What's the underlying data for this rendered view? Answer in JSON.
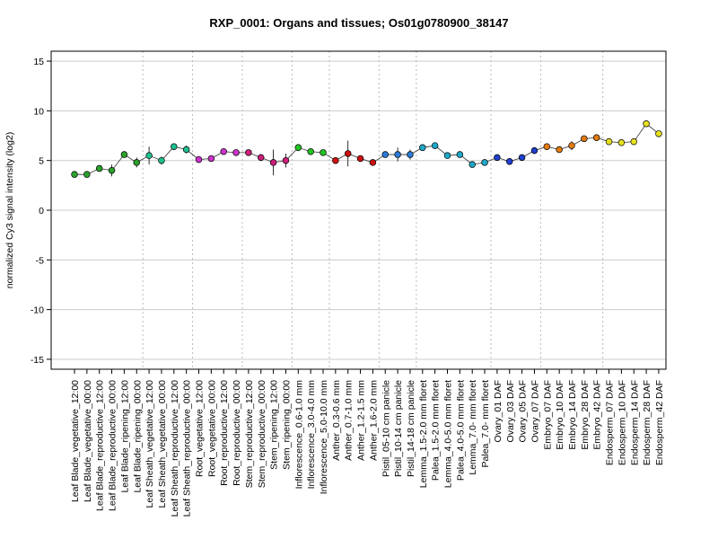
{
  "chart_data": {
    "type": "line",
    "title": "RXP_0001: Organs and tissues; Os01g0780900_38147",
    "xlabel": "",
    "ylabel": "normalized Cy3 signal intensity (log2)",
    "ylim": [
      -16,
      16
    ],
    "yticks": [
      -15,
      -10,
      -5,
      0,
      5,
      10,
      15
    ],
    "grid": true,
    "categories": [
      "Leaf Blade_vegetative_12:00",
      "Leaf Blade_vegetative_00:00",
      "Leaf Blade_reproductive_12:00",
      "Leaf Blade_reproductive_00:00",
      "Leaf Blade_ripening_12:00",
      "Leaf Blade_ripening_00:00",
      "Leaf Sheath_vegetative_12:00",
      "Leaf Sheath_vegetative_00:00",
      "Leaf Sheath_reproductive_12:00",
      "Leaf Sheath_reproductive_00:00",
      "Root_vegetative_12:00",
      "Root_vegetative_00:00",
      "Root_reproductive_12:00",
      "Root_reproductive_00:00",
      "Stem_reproductive_12:00",
      "Stem_reproductive_00:00",
      "Stem_ripening_12:00",
      "Stem_ripening_00:00",
      "Inflorescence_0.6-1.0 mm",
      "Inflorescence_3.0-4.0 mm",
      "Inflorescence_5.0-10.0 mm",
      "Anther_0.3-0.6 mm",
      "Anther_0.7-1.0 mm",
      "Anther_1.2-1.5 mm",
      "Anther_1.6-2.0 mm",
      "Pistil_05-10 cm panicle",
      "Pistil_10-14 cm panicle",
      "Pistil_14-18 cm panicle",
      "Lemma_1.5-2.0 mm floret",
      "Palea_1.5-2.0 mm floret",
      "Lemma_4.0-5.0 mm floret",
      "Palea_4.0-5.0 mm floret",
      "Lemma_7.0- mm floret",
      "Palea_7.0- mm floret",
      "Ovary_01 DAF",
      "Ovary_03 DAF",
      "Ovary_05 DAF",
      "Ovary_07 DAF",
      "Embryo_07 DAF",
      "Embryo_10 DAF",
      "Embryo_14 DAF",
      "Embryo_28 DAF",
      "Embryo_42 DAF",
      "Endosperm_07 DAF",
      "Endosperm_10 DAF",
      "Endosperm_14 DAF",
      "Endosperm_28 DAF",
      "Endosperm_42 DAF"
    ],
    "series": [
      {
        "values": [
          3.6,
          3.6,
          4.2,
          4.0,
          5.6,
          4.8,
          5.5,
          5.0,
          6.4,
          6.1,
          5.1,
          5.2,
          5.9,
          5.8,
          5.8,
          5.3,
          4.8,
          5.0,
          6.3,
          5.9,
          5.8,
          5.0,
          5.7,
          5.2,
          4.8,
          5.6,
          5.6,
          5.6,
          6.3,
          6.5,
          5.5,
          5.6,
          4.6,
          4.8,
          5.3,
          4.9,
          5.3,
          6.0,
          6.4,
          6.1,
          6.5,
          7.2,
          7.3,
          6.9,
          6.8,
          6.9,
          8.7,
          7.7
        ],
        "error": [
          0.2,
          0.25,
          0.3,
          0.6,
          0.25,
          0.5,
          0.9,
          0.4,
          0.25,
          0.4,
          0.2,
          0.2,
          0.2,
          0.2,
          0.3,
          0.35,
          1.3,
          0.7,
          0.35,
          0.2,
          0.2,
          0.3,
          1.3,
          0.2,
          0.2,
          0.3,
          0.7,
          0.5,
          0.3,
          0.25,
          0.3,
          0.25,
          0.25,
          0.2,
          0.2,
          0.2,
          0.25,
          0.2,
          0.2,
          0.2,
          0.45,
          0.2,
          0.2,
          0.2,
          0.2,
          0.2,
          0.2,
          0.2
        ]
      }
    ],
    "point_colors": [
      "#2ca02c",
      "#2ca02c",
      "#2ca02c",
      "#2ca02c",
      "#2ca02c",
      "#2ca02c",
      "#1fbf8f",
      "#1fbf8f",
      "#1fbf8f",
      "#1fbf8f",
      "#cc33cc",
      "#cc33cc",
      "#cc33cc",
      "#cc33cc",
      "#cc1f7a",
      "#cc1f7a",
      "#cc1f7a",
      "#cc1f7a",
      "#22c422",
      "#22c422",
      "#22c422",
      "#cc1111",
      "#cc1111",
      "#cc1111",
      "#cc1111",
      "#2c7bd6",
      "#2c7bd6",
      "#2c7bd6",
      "#1fa8c8",
      "#1fa8c8",
      "#1fa8c8",
      "#1fa8c8",
      "#1fa8c8",
      "#1fa8c8",
      "#1f3fcc",
      "#1f3fcc",
      "#1f3fcc",
      "#1f3fcc",
      "#e07a10",
      "#e07a10",
      "#e07a10",
      "#e07a10",
      "#e07a10",
      "#e8e020",
      "#e8e020",
      "#e8e020",
      "#e8e020",
      "#e8e020"
    ],
    "group_boundaries_after_index": [
      5,
      9,
      13,
      17,
      20,
      24,
      27,
      33,
      37,
      42
    ]
  }
}
